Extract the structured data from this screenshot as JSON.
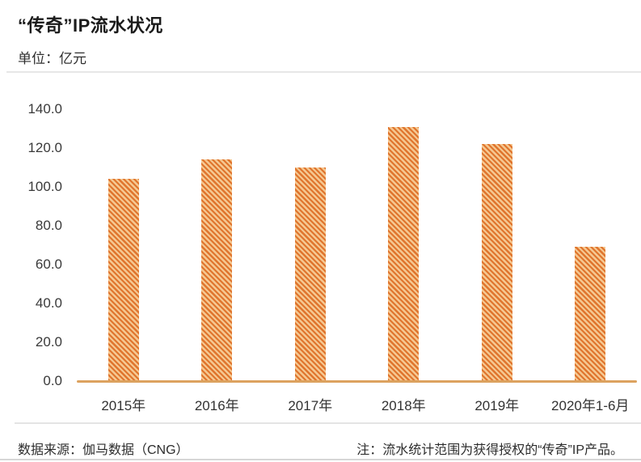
{
  "header": {
    "title": "“传奇”IP流水状况",
    "unit_label": "单位：亿元"
  },
  "chart_data": {
    "type": "bar",
    "title": "“传奇”IP流水状况",
    "unit": "亿元",
    "categories": [
      "2015年",
      "2016年",
      "2017年",
      "2018年",
      "2019年",
      "2020年1-6月"
    ],
    "values": [
      104.0,
      114.0,
      110.0,
      131.0,
      122.0,
      69.0
    ],
    "ylim": [
      0,
      140
    ],
    "ytick_step": 20,
    "ytick_labels": [
      "0.0",
      "20.0",
      "40.0",
      "60.0",
      "80.0",
      "100.0",
      "120.0",
      "140.0"
    ],
    "grid": false,
    "legend": "none",
    "bar_hatch_dark": "#e0752e",
    "bar_hatch_light": "#f6c causes",
    "axis_line_color": "#dca25f"
  },
  "footer": {
    "source": "数据来源：伽马数据（CNG）",
    "note": "注：流水统计范围为获得授权的“传奇”IP产品。"
  }
}
